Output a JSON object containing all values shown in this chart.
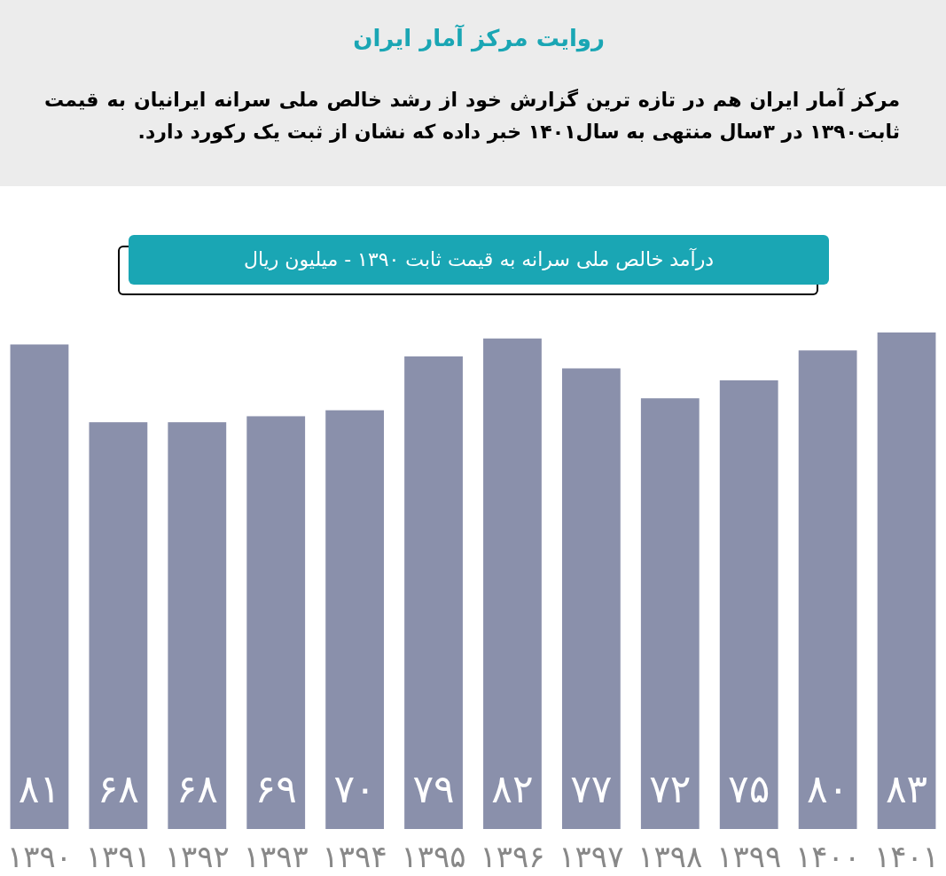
{
  "chart_data": {
    "type": "bar",
    "title": "روایت مرکز آمار ایران",
    "subtitle": "مرکز آمار ایران هم در تازه ترین گزارش خود از رشد خالص ملی سرانه ایرانیان به قیمت ثابت۱۳۹۰ در ۳سال منتهی به سال۱۴۰۱ خبر داده که نشان از ثبت یک رکورد دارد.",
    "ylabel": "درآمد خالص ملی سرانه به قیمت ثابت ۱۳۹۰ - میلیون ریال",
    "categories": [
      "۱۳۹۰",
      "۱۳۹۱",
      "۱۳۹۲",
      "۱۳۹۳",
      "۱۳۹۴",
      "۱۳۹۵",
      "۱۳۹۶",
      "۱۳۹۷",
      "۱۳۹۸",
      "۱۳۹۹",
      "۱۴۰۰",
      "۱۴۰۱"
    ],
    "values": [
      81,
      68,
      68,
      69,
      70,
      79,
      82,
      77,
      72,
      75,
      80,
      83
    ],
    "value_labels": [
      "۸۱",
      "۶۸",
      "۶۸",
      "۶۹",
      "۷۰",
      "۷۹",
      "۸۲",
      "۷۷",
      "۷۲",
      "۷۵",
      "۸۰",
      "۸۳"
    ],
    "color": "#8a90ab"
  }
}
